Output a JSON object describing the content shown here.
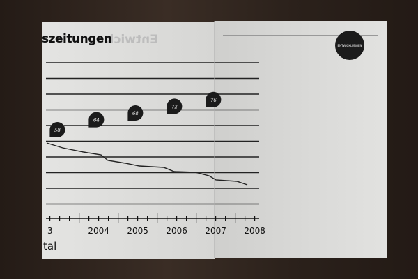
{
  "header": {
    "title": "szeitungen",
    "ghost_title": "Entwick",
    "badge": "ENTWICKLUNGEN"
  },
  "footer": {
    "label": "tal"
  },
  "chart_data": {
    "type": "line",
    "categories": [
      "3",
      "2004",
      "2005",
      "2006",
      "2007",
      "2008"
    ],
    "bubbles": {
      "x": [
        2003.3,
        2004.3,
        2005.3,
        2006.3,
        2007.3
      ],
      "values": [
        58,
        64,
        68,
        72,
        76
      ]
    },
    "grid": true,
    "colors": {
      "line": "#222222",
      "bubble": "#1b1b1b",
      "grid": "#222222"
    }
  }
}
